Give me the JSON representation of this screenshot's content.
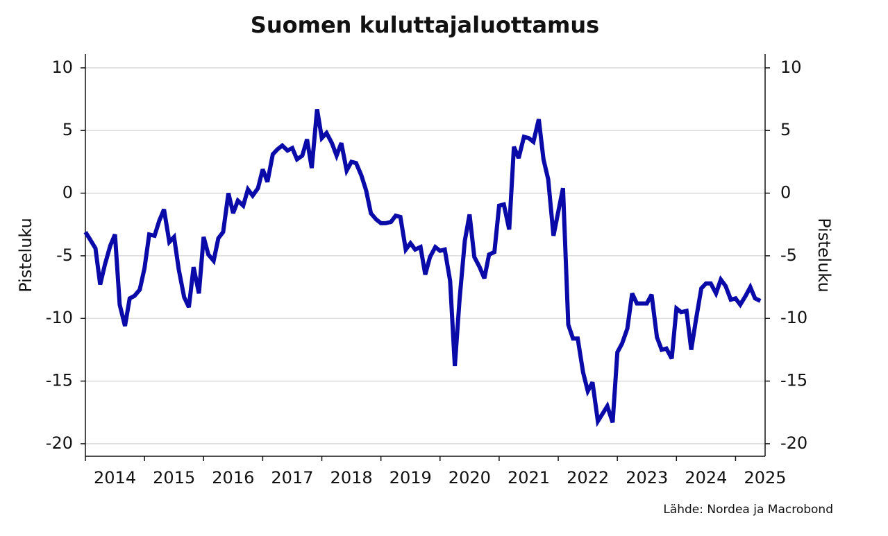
{
  "chart_data": {
    "type": "line",
    "title": "Suomen kuluttajaluottamus",
    "ylabel": "Pisteluku",
    "y2label": "Pisteluku",
    "source": "Lähde: Nordea ja Macrobond",
    "color": "#0a0aa8",
    "x": [
      2014.0,
      2014.08,
      2014.17,
      2014.25,
      2014.33,
      2014.42,
      2014.5,
      2014.58,
      2014.67,
      2014.75,
      2014.83,
      2014.92,
      2015.0,
      2015.08,
      2015.17,
      2015.25,
      2015.33,
      2015.42,
      2015.5,
      2015.58,
      2015.67,
      2015.75,
      2015.83,
      2015.92,
      2016.0,
      2016.08,
      2016.17,
      2016.25,
      2016.33,
      2016.42,
      2016.5,
      2016.58,
      2016.67,
      2016.75,
      2016.83,
      2016.92,
      2017.0,
      2017.08,
      2017.17,
      2017.25,
      2017.33,
      2017.42,
      2017.5,
      2017.58,
      2017.67,
      2017.75,
      2017.83,
      2017.92,
      2018.0,
      2018.08,
      2018.17,
      2018.25,
      2018.33,
      2018.42,
      2018.5,
      2018.58,
      2018.67,
      2018.75,
      2018.83,
      2018.92,
      2019.0,
      2019.08,
      2019.17,
      2019.25,
      2019.33,
      2019.42,
      2019.5,
      2019.58,
      2019.67,
      2019.75,
      2019.83,
      2019.92,
      2020.0,
      2020.08,
      2020.17,
      2020.25,
      2020.33,
      2020.42,
      2020.5,
      2020.58,
      2020.67,
      2020.75,
      2020.83,
      2020.92,
      2021.0,
      2021.08,
      2021.17,
      2021.25,
      2021.33,
      2021.42,
      2021.5,
      2021.58,
      2021.67,
      2021.75,
      2021.83,
      2021.92,
      2022.0,
      2022.08,
      2022.17,
      2022.25,
      2022.33,
      2022.42,
      2022.5,
      2022.58,
      2022.67,
      2022.75,
      2022.83,
      2022.92,
      2023.0,
      2023.08,
      2023.17,
      2023.25,
      2023.33,
      2023.42,
      2023.5,
      2023.58,
      2023.67,
      2023.75,
      2023.83,
      2023.92,
      2024.0,
      2024.08,
      2024.17,
      2024.25,
      2024.33,
      2024.42,
      2024.5,
      2024.58,
      2024.67,
      2024.75,
      2024.83,
      2024.92,
      2025.0,
      2025.08,
      2025.17,
      2025.25,
      2025.33,
      2025.42
    ],
    "values": [
      -3.1,
      -3.7,
      -4.4,
      -7.3,
      -5.7,
      -4.2,
      -3.3,
      -8.9,
      -10.6,
      -8.4,
      -8.2,
      -7.7,
      -6.0,
      -3.3,
      -3.4,
      -2.2,
      -1.3,
      -3.9,
      -3.5,
      -6.1,
      -8.3,
      -9.1,
      -5.9,
      -8.0,
      -3.5,
      -4.9,
      -5.4,
      -3.6,
      -3.1,
      0.0,
      -1.6,
      -0.6,
      -1.0,
      0.3,
      -0.2,
      0.4,
      1.9,
      0.9,
      3.1,
      3.5,
      3.8,
      3.4,
      3.6,
      2.7,
      3.0,
      4.3,
      2.0,
      6.7,
      4.4,
      4.8,
      4.0,
      3.0,
      4.0,
      1.8,
      2.5,
      2.4,
      1.4,
      0.2,
      -1.6,
      -2.1,
      -2.4,
      -2.4,
      -2.3,
      -1.8,
      -1.9,
      -4.5,
      -4.0,
      -4.5,
      -4.3,
      -6.5,
      -5.1,
      -4.3,
      -4.6,
      -4.5,
      -7.0,
      -13.8,
      -8.5,
      -3.8,
      -1.7,
      -5.1,
      -5.9,
      -6.8,
      -4.9,
      -4.7,
      -1.0,
      -0.9,
      -2.9,
      3.7,
      2.8,
      4.5,
      4.4,
      4.1,
      5.9,
      2.7,
      1.1,
      -3.4,
      -1.5,
      0.4,
      -10.5,
      -11.6,
      -11.6,
      -14.3,
      -15.8,
      -15.1,
      -18.2,
      -17.6,
      -17.0,
      -18.3,
      -12.7,
      -12.0,
      -10.8,
      -8.0,
      -8.8,
      -8.8,
      -8.8,
      -8.1,
      -11.5,
      -12.5,
      -12.4,
      -13.2,
      -9.2,
      -9.5,
      -9.4,
      -12.5,
      -10.1,
      -7.6,
      -7.2,
      -7.2,
      -8.0,
      -6.9,
      -7.4,
      -8.5,
      -8.4,
      -8.9,
      -8.2,
      -7.5,
      -8.4,
      -8.6
    ],
    "xlim": [
      2014,
      2025.5
    ],
    "xticks": [
      2014,
      2015,
      2016,
      2017,
      2018,
      2019,
      2020,
      2021,
      2022,
      2023,
      2024,
      2025
    ],
    "ylim": [
      -21,
      11.1
    ],
    "yticks": [
      -20,
      -15,
      -10,
      -5,
      0,
      5,
      10
    ],
    "y2lim": [
      -21,
      11.1
    ],
    "y2ticks": [
      -20,
      -15,
      -10,
      -5,
      0,
      5,
      10
    ],
    "grid": true
  }
}
